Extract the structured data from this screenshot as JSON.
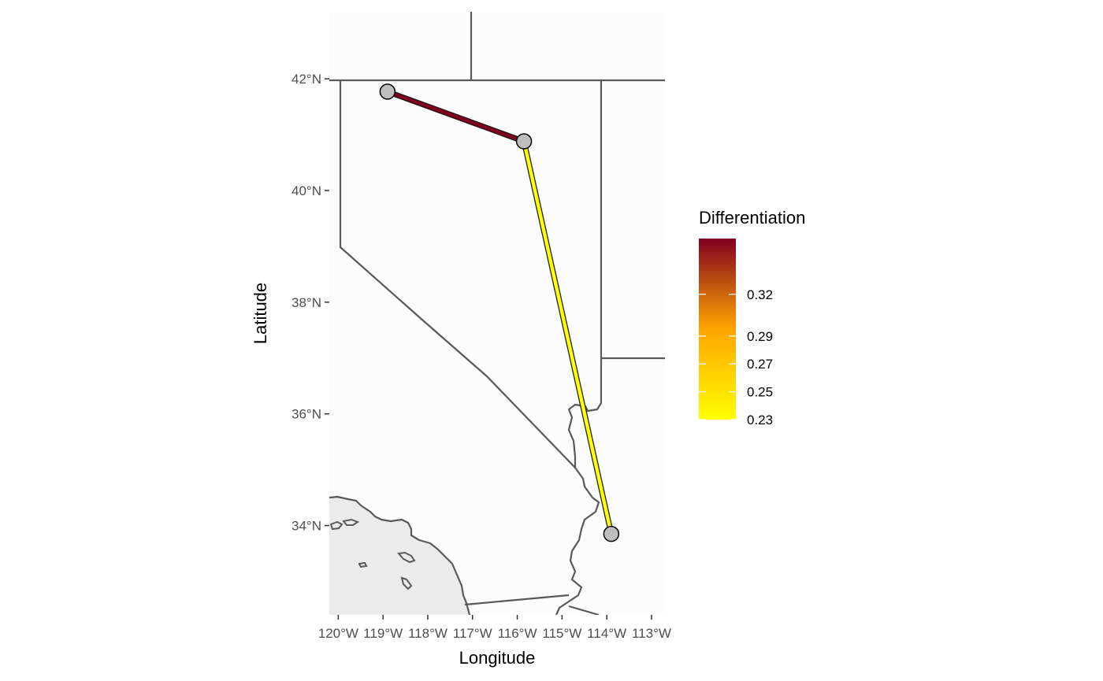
{
  "chart_data": {
    "type": "map",
    "xlabel": "Longitude",
    "ylabel": "Latitude",
    "xlim": [
      -120.2,
      -112.7
    ],
    "ylim": [
      32.4,
      43.2
    ],
    "x_ticks": [
      {
        "value": -120,
        "label": "120°W"
      },
      {
        "value": -119,
        "label": "119°W"
      },
      {
        "value": -118,
        "label": "118°W"
      },
      {
        "value": -117,
        "label": "117°W"
      },
      {
        "value": -116,
        "label": "116°W"
      },
      {
        "value": -115,
        "label": "115°W"
      },
      {
        "value": -114,
        "label": "114°W"
      },
      {
        "value": -113,
        "label": "113°W"
      }
    ],
    "y_ticks": [
      {
        "value": 34,
        "label": "34°N"
      },
      {
        "value": 36,
        "label": "36°N"
      },
      {
        "value": 38,
        "label": "38°N"
      },
      {
        "value": 40,
        "label": "40°N"
      },
      {
        "value": 42,
        "label": "42°N"
      }
    ],
    "sites": [
      {
        "lon": -118.9,
        "lat": 41.77
      },
      {
        "lon": -115.85,
        "lat": 40.88
      },
      {
        "lon": -113.9,
        "lat": 33.85
      }
    ],
    "edges": [
      {
        "from": 0,
        "to": 1,
        "value": 0.36
      },
      {
        "from": 1,
        "to": 2,
        "value": 0.23
      }
    ],
    "legend": {
      "title": "Differentiation",
      "placement": "right",
      "min": 0.23,
      "max": 0.36,
      "low_color": "#ffff00",
      "mid_color": "#ffa500",
      "high_color": "#800020",
      "breaks": [
        {
          "value": 0.23,
          "label": "0.23"
        },
        {
          "value": 0.25,
          "label": "0.25"
        },
        {
          "value": 0.27,
          "label": "0.27"
        },
        {
          "value": 0.29,
          "label": "0.29"
        },
        {
          "value": 0.32,
          "label": "0.32"
        }
      ]
    },
    "colors": {
      "panel": "#fcfcfc",
      "ocean": "#ebebeb",
      "border": "#595959",
      "node_fill": "#bebebe"
    }
  }
}
